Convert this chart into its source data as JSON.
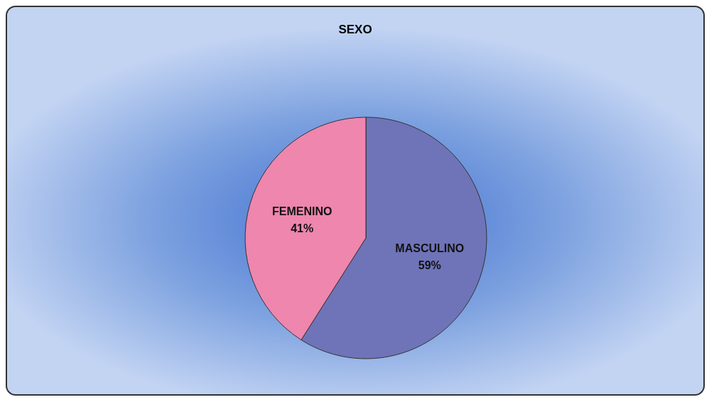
{
  "chart_data": {
    "type": "pie",
    "title": "SEXO",
    "categories": [
      "MASCULINO",
      "FEMENINO"
    ],
    "values": [
      59,
      41
    ],
    "value_labels": [
      "59%",
      "41%"
    ],
    "colors": [
      "#6f74b8",
      "#ee86ae"
    ]
  }
}
